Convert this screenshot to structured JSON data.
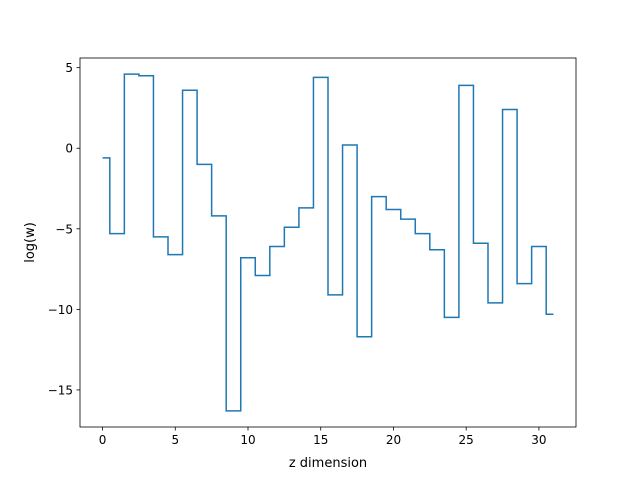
{
  "chart_data": {
    "type": "line",
    "drawstyle": "steps-mid",
    "xlabel": "z dimension",
    "ylabel": "log(w)",
    "xlim": [
      -1.55,
      32.55
    ],
    "ylim": [
      -17.3,
      5.6
    ],
    "xticks": [
      0,
      5,
      10,
      15,
      20,
      25,
      30
    ],
    "xtick_labels": [
      "0",
      "5",
      "10",
      "15",
      "20",
      "25",
      "30"
    ],
    "yticks": [
      5,
      0,
      -5,
      -10,
      -15
    ],
    "ytick_labels": [
      "5",
      "0",
      "−5",
      "−10",
      "−15"
    ],
    "grid": false,
    "series": [
      {
        "color": "#1f77b4",
        "x": [
          0,
          1,
          2,
          3,
          4,
          5,
          6,
          7,
          8,
          9,
          10,
          11,
          12,
          13,
          14,
          15,
          16,
          17,
          18,
          19,
          20,
          21,
          22,
          23,
          24,
          25,
          26,
          27,
          28,
          29,
          30,
          31
        ],
        "y": [
          -0.6,
          -5.3,
          4.6,
          4.5,
          -5.5,
          -6.6,
          3.6,
          -1.0,
          -4.2,
          -16.3,
          -6.8,
          -7.9,
          -6.1,
          -4.9,
          -3.7,
          4.4,
          -9.1,
          0.2,
          -11.7,
          -3.0,
          -3.8,
          -4.4,
          -5.3,
          -6.3,
          -10.5,
          3.9,
          -5.9,
          -9.6,
          2.4,
          -8.4,
          -6.1,
          -10.3
        ]
      }
    ]
  }
}
